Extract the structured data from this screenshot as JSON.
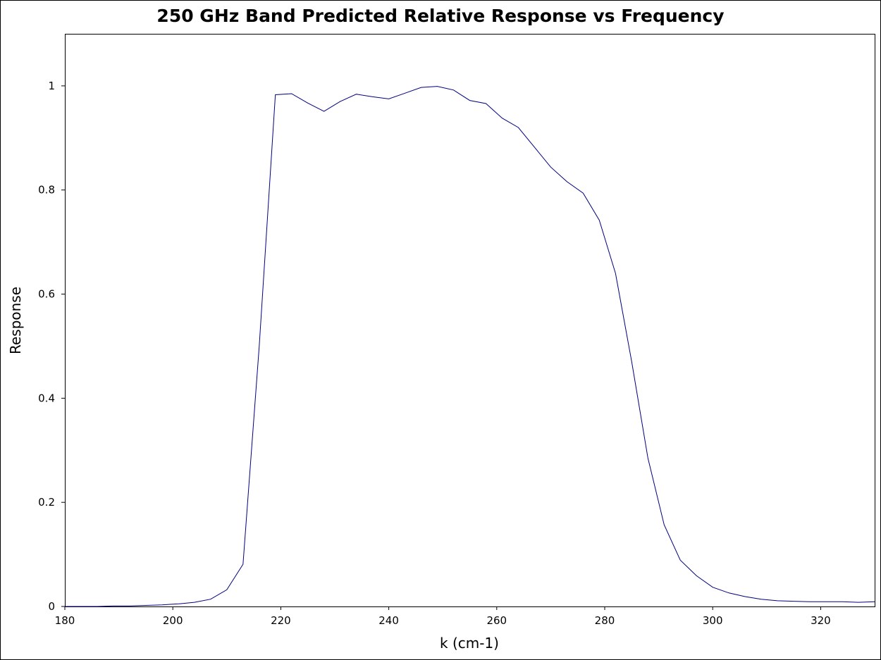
{
  "chart_data": {
    "type": "line",
    "title": "250 GHz Band Predicted Relative Response vs Frequency",
    "xlabel": "k (cm-1)",
    "ylabel": "Response",
    "xlim": [
      180,
      330
    ],
    "ylim": [
      0,
      1.1
    ],
    "x_ticks": [
      180,
      200,
      220,
      240,
      260,
      280,
      300,
      320
    ],
    "y_ticks": [
      0,
      0.2,
      0.4,
      0.6,
      0.8,
      1
    ],
    "x_tick_labels": [
      "180",
      "200",
      "220",
      "240",
      "260",
      "280",
      "300",
      "320"
    ],
    "y_tick_labels": [
      "0",
      "0.2",
      "0.4",
      "0.6",
      "0.8",
      "1"
    ],
    "grid": false,
    "line_color": "#000080",
    "series": [
      {
        "x": [
          180,
          183,
          186,
          189,
          192,
          195,
          198,
          201,
          204,
          207,
          210,
          213,
          216,
          219,
          222,
          225,
          228,
          231,
          234,
          237,
          240,
          243,
          246,
          249,
          252,
          255,
          258,
          261,
          264,
          267,
          270,
          273,
          276,
          279,
          282,
          285,
          288,
          291,
          294,
          297,
          300,
          303,
          306,
          309,
          312,
          315,
          318,
          321,
          324,
          327,
          330
        ],
        "y": [
          0,
          0,
          0,
          0.001,
          0.001,
          0.002,
          0.003,
          0.005,
          0.008,
          0.014,
          0.032,
          0.081,
          0.5,
          0.983,
          0.985,
          0.967,
          0.951,
          0.97,
          0.984,
          0.979,
          0.975,
          0.986,
          0.997,
          0.999,
          0.992,
          0.972,
          0.966,
          0.938,
          0.92,
          0.882,
          0.844,
          0.816,
          0.794,
          0.742,
          0.64,
          0.47,
          0.285,
          0.157,
          0.089,
          0.059,
          0.037,
          0.026,
          0.019,
          0.014,
          0.011,
          0.01,
          0.009,
          0.009,
          0.009,
          0.008,
          0.009
        ]
      }
    ]
  }
}
